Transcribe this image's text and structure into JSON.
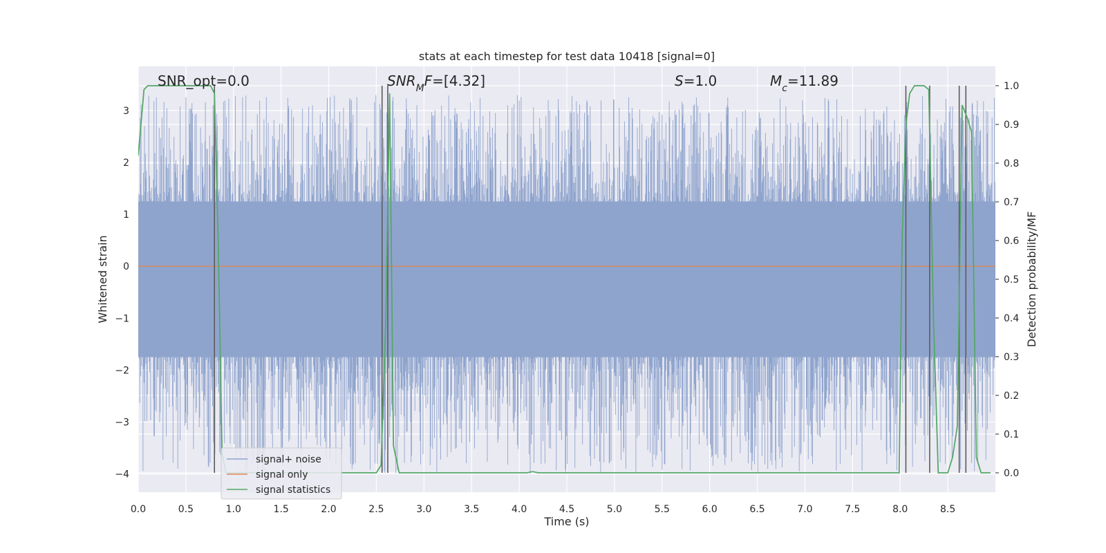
{
  "chart_data": {
    "type": "line",
    "title": "stats at each timestep for test data 10418 [signal=0]",
    "xlabel": "Time (s)",
    "ylabel": "Whitened strain",
    "y2label": "Detection probability/MF",
    "xlim": [
      0.0,
      9.0
    ],
    "ylim": [
      -4.35,
      3.85
    ],
    "y2lim": [
      -0.05,
      1.05
    ],
    "xticks": [
      0.0,
      0.5,
      1.0,
      1.5,
      2.0,
      2.5,
      3.0,
      3.5,
      4.0,
      4.5,
      5.0,
      5.5,
      6.0,
      6.5,
      7.0,
      7.5,
      8.0,
      8.5
    ],
    "xtick_labels": [
      "0.0",
      "0.5",
      "1.0",
      "1.5",
      "2.0",
      "2.5",
      "3.0",
      "3.5",
      "4.0",
      "4.5",
      "5.0",
      "5.5",
      "6.0",
      "6.5",
      "7.0",
      "7.5",
      "8.0",
      "8.5"
    ],
    "yticks": [
      3,
      2,
      1,
      0,
      -1,
      -2,
      -3,
      -4
    ],
    "ytick_labels": [
      "3",
      "2",
      "1",
      "0",
      "−1",
      "−2",
      "−3",
      "−4"
    ],
    "y2ticks": [
      1.0,
      0.9,
      0.8,
      0.7,
      0.6,
      0.5,
      0.4,
      0.3,
      0.2,
      0.1,
      0.0
    ],
    "y2tick_labels": [
      "1.0",
      "0.9",
      "0.8",
      "0.7",
      "0.6",
      "0.5",
      "0.4",
      "0.3",
      "0.2",
      "0.1",
      "0.0"
    ],
    "grid": true,
    "legend_position": "lower-left",
    "annotations": [
      {
        "text": "SNR_opt=0.0",
        "x": 0.19,
        "y": 3.55
      },
      {
        "text": "SNR_MF=[4.32]",
        "x": 2.6,
        "y": 3.55
      },
      {
        "text": "S=1.0",
        "x": 5.6,
        "y": 3.55
      },
      {
        "text": "M_c=11.89",
        "x": 6.6,
        "y": 3.55
      }
    ],
    "series": [
      {
        "name": "signal+ noise",
        "color": "#8fa4cd",
        "noise_band": [
          -1.75,
          1.25
        ],
        "extreme_range": [
          -4.0,
          3.3
        ]
      },
      {
        "name": "signal only",
        "color": "#dd8452",
        "value": 0.0
      },
      {
        "name": "signal statistics",
        "color": "#55a868",
        "axis": "right",
        "x": [
          0.0,
          0.06,
          0.1,
          0.2,
          0.3,
          0.4,
          0.5,
          0.6,
          0.7,
          0.76,
          0.8,
          0.84,
          0.88,
          0.92,
          1.0,
          1.5,
          2.0,
          2.5,
          2.55,
          2.6,
          2.64,
          2.68,
          2.74,
          3.0,
          3.5,
          4.0,
          4.08,
          4.14,
          4.2,
          4.5,
          5.0,
          5.5,
          6.0,
          6.5,
          7.0,
          7.5,
          7.99,
          8.02,
          8.06,
          8.1,
          8.15,
          8.2,
          8.25,
          8.3,
          8.35,
          8.4,
          8.45,
          8.5,
          8.55,
          8.6,
          8.65,
          8.7,
          8.75,
          8.8,
          8.85,
          8.9,
          8.95
        ],
        "values": [
          0.82,
          0.99,
          1.0,
          1.0,
          1.0,
          1.0,
          1.0,
          1.0,
          1.0,
          1.0,
          0.98,
          0.6,
          0.05,
          0.0,
          0.0,
          0.0,
          0.0,
          0.0,
          0.02,
          0.4,
          0.98,
          0.07,
          0.0,
          0.0,
          0.0,
          0.0,
          0.0,
          0.003,
          0.0,
          0.0,
          0.0,
          0.0,
          0.0,
          0.0,
          0.0,
          0.0,
          0.0,
          0.6,
          0.9,
          0.98,
          1.0,
          1.0,
          1.0,
          0.99,
          0.4,
          0.0,
          0.0,
          0.0,
          0.04,
          0.12,
          0.95,
          0.92,
          0.88,
          0.04,
          0.0,
          0.0,
          0.0
        ]
      }
    ],
    "vertical_markers": [
      0.8,
      2.56,
      2.62,
      8.06,
      8.31,
      8.62,
      8.69
    ]
  }
}
